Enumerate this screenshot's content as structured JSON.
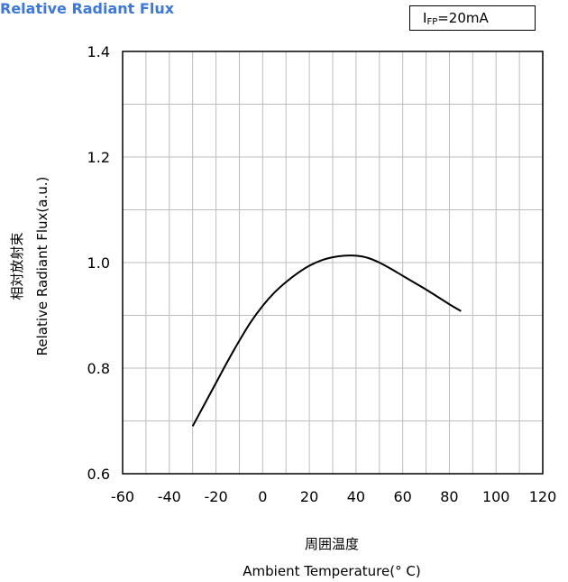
{
  "header": {
    "title": "Relative Radiant Flux",
    "condition_main": "I",
    "condition_sub": "FP",
    "condition_value": "=20mA"
  },
  "chart_data": {
    "type": "line",
    "title": "Relative Radiant Flux",
    "annotation": "IFP=20mA",
    "xlabel": "Ambient Temperature(° C)",
    "xlabel_cn": "周囲温度",
    "ylabel": "Relative Radiant Flux(a.u.)",
    "ylabel_cn": "相対放射束",
    "xlim": [
      -60,
      120
    ],
    "ylim": [
      0.6,
      1.4
    ],
    "x_ticks": [
      "-60",
      "-40",
      "-20",
      "0",
      "20",
      "40",
      "60",
      "80",
      "100",
      "120"
    ],
    "y_ticks": [
      "0.6",
      "0.8",
      "1.0",
      "1.2",
      "1.4"
    ],
    "grid": true,
    "series": [
      {
        "x": [
          -30,
          -25,
          -20,
          -15,
          -10,
          -5,
          0,
          5,
          10,
          15,
          20,
          25,
          30,
          35,
          40,
          45,
          50,
          55,
          60,
          65,
          70,
          75,
          80,
          85
        ],
        "values": [
          0.69,
          0.731,
          0.772,
          0.813,
          0.852,
          0.888,
          0.918,
          0.943,
          0.963,
          0.98,
          0.994,
          1.004,
          1.01,
          1.013,
          1.013,
          1.009,
          1.0,
          0.988,
          0.975,
          0.962,
          0.949,
          0.935,
          0.921,
          0.908
        ]
      }
    ]
  }
}
